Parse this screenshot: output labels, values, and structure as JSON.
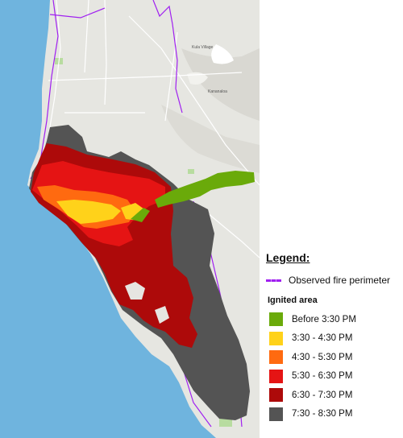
{
  "map": {
    "place_labels": [
      "Kula Village",
      "Kananaloa"
    ],
    "colors": {
      "ocean": "#6fb4de",
      "land": "#e6e6e1",
      "perimeter": "#a020f0"
    }
  },
  "legend": {
    "title": "Legend:",
    "perimeter_label": "Observed fire perimeter",
    "ignited_title": "Ignited area",
    "items": [
      {
        "label": "Before 3:30 PM",
        "color": "#6aaa0a"
      },
      {
        "label": "3:30 - 4:30 PM",
        "color": "#ffd21a"
      },
      {
        "label": "4:30 - 5:30 PM",
        "color": "#ff6a10"
      },
      {
        "label": "5:30 - 6:30 PM",
        "color": "#e51414"
      },
      {
        "label": "6:30 - 7:30 PM",
        "color": "#ad0a0a"
      },
      {
        "label": "7:30 - 8:30 PM",
        "color": "#545454"
      }
    ]
  }
}
